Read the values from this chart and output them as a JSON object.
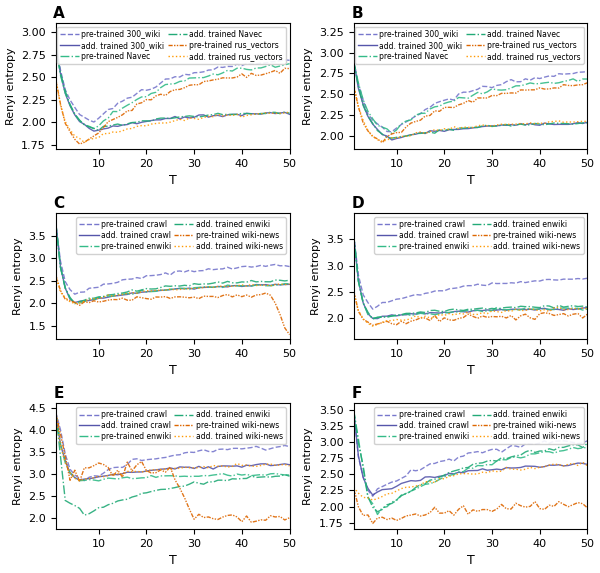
{
  "panels": [
    {
      "label": "A",
      "legend_labels": [
        "pre-trained 300_wiki",
        "add. trained 300_wiki",
        "pre-trained Navec",
        "add. trained Navec",
        "pre-trained rus_vectors",
        "add. trained rus_vectors"
      ],
      "ylim": [
        1.7,
        3.1
      ],
      "yticks": [
        1.75,
        2.0,
        2.25,
        2.5,
        2.75,
        3.0
      ]
    },
    {
      "label": "B",
      "legend_labels": [
        "pre-trained 300_wiki",
        "add. trained 300_wiki",
        "pre-trained Navec",
        "add. trained Navec",
        "pre-trained rus_vectors",
        "add. trained rus_vectors"
      ],
      "ylim": [
        1.85,
        3.35
      ],
      "yticks": [
        2.0,
        2.25,
        2.5,
        2.75,
        3.0,
        3.25
      ]
    },
    {
      "label": "C",
      "legend_labels": [
        "pre-trained crawl",
        "add. trained crawl",
        "pre-trained enwiki",
        "add. trained enwiki",
        "pre-trained wiki-news",
        "add. trained wiki-news"
      ],
      "ylim": [
        1.2,
        4.0
      ],
      "yticks": [
        1.5,
        2.0,
        2.5,
        3.0,
        3.5
      ]
    },
    {
      "label": "D",
      "legend_labels": [
        "pre-trained crawl",
        "add. trained crawl",
        "pre-trained enwiki",
        "add. trained enwiki",
        "pre-trained wiki-news",
        "add. trained wiki-news"
      ],
      "ylim": [
        1.6,
        4.0
      ],
      "yticks": [
        2.0,
        2.5,
        3.0,
        3.5
      ]
    },
    {
      "label": "E",
      "legend_labels": [
        "pre-trained crawl",
        "add. trained crawl",
        "pre-trained enwiki",
        "add. trained enwiki",
        "pre-trained wiki-news",
        "add. trained wiki-news"
      ],
      "ylim": [
        1.75,
        4.6
      ],
      "yticks": [
        2.0,
        2.5,
        3.0,
        3.5,
        4.0,
        4.5
      ]
    },
    {
      "label": "F",
      "legend_labels": [
        "pre-trained crawl",
        "add. trained crawl",
        "pre-trained enwiki",
        "add. trained enwiki",
        "pre-trained wiki-news",
        "add. trained wiki-news"
      ],
      "ylim": [
        1.65,
        3.6
      ],
      "yticks": [
        1.75,
        2.0,
        2.25,
        2.5,
        2.75,
        3.0,
        3.25,
        3.5
      ]
    }
  ],
  "xlabel": "T",
  "ylabel": "Renyi entropy"
}
